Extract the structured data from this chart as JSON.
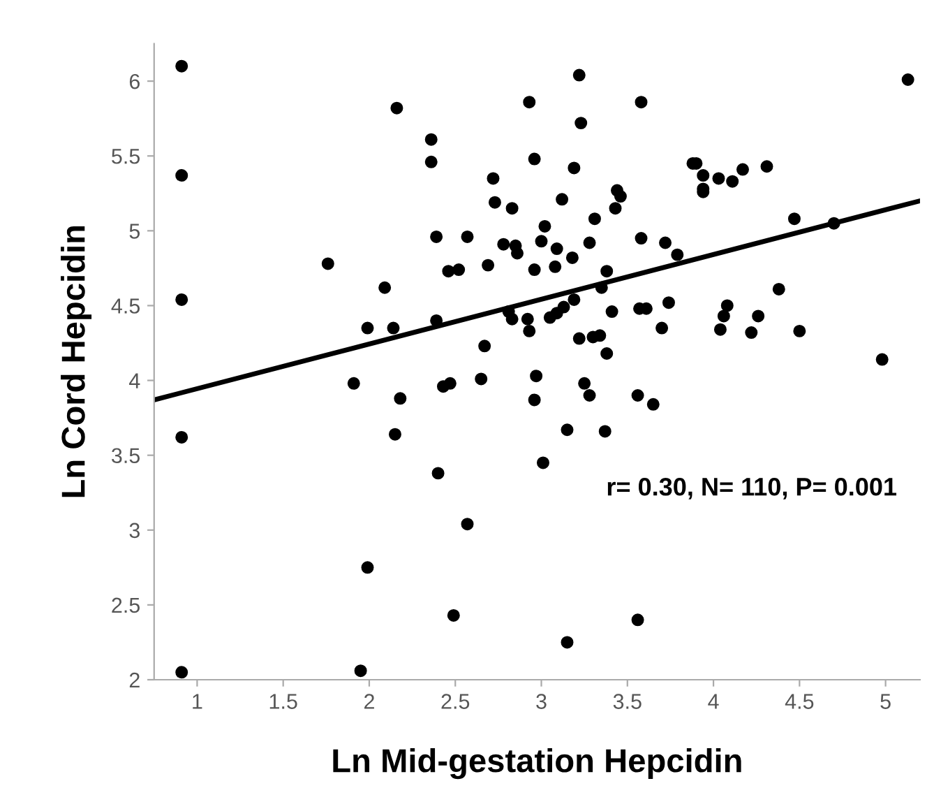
{
  "chart_data": {
    "type": "scatter",
    "xlabel": "Ln Mid-gestation Hepcidin",
    "ylabel": "Ln Cord Hepcidin",
    "annotations": [
      "r= 0.30, N= 110, P= 0.001"
    ],
    "xlim": [
      0.75,
      5.2
    ],
    "ylim": [
      2,
      6.25
    ],
    "xticks": [
      1,
      1.5,
      2,
      2.5,
      3,
      3.5,
      4,
      4.5,
      5
    ],
    "yticks": [
      2,
      2.5,
      3,
      3.5,
      4,
      4.5,
      5,
      5.5,
      6
    ],
    "grid": false,
    "legend": false,
    "series": [
      {
        "marker": "circle",
        "color": "#000000",
        "x": [
          0.91,
          0.91,
          0.91,
          0.91,
          0.91,
          1.76,
          1.99,
          1.91,
          1.99,
          1.95,
          2.18,
          2.15,
          2.4,
          2.57,
          2.49,
          2.96,
          3.28,
          3.15,
          3.37,
          3.01,
          3.56,
          3.15,
          3.56,
          3.65,
          2.16,
          2.36,
          2.36,
          2.93,
          3.22,
          3.23,
          3.58,
          2.96,
          3.19,
          2.72,
          2.73,
          2.83,
          3.12,
          3.44,
          3.46,
          3.43,
          3.31,
          3.02,
          2.39,
          2.57,
          2.78,
          2.85,
          2.86,
          3.0,
          3.09,
          3.28,
          3.58,
          3.18,
          2.46,
          2.52,
          2.69,
          2.96,
          3.08,
          3.38,
          2.09,
          3.35,
          3.19,
          2.14,
          2.39,
          2.81,
          2.83,
          2.92,
          3.05,
          3.09,
          3.13,
          3.41,
          3.57,
          3.61,
          2.93,
          2.67,
          3.22,
          3.3,
          3.34,
          3.38,
          2.43,
          2.47,
          2.65,
          2.97,
          3.25,
          5.13,
          3.88,
          3.9,
          3.94,
          4.03,
          3.94,
          3.94,
          4.11,
          4.17,
          4.31,
          4.47,
          4.7,
          3.72,
          3.79,
          4.38,
          3.74,
          4.08,
          4.06,
          4.26,
          3.7,
          4.04,
          4.22,
          4.5,
          4.98
        ],
        "values": [
          6.1,
          5.37,
          4.54,
          3.62,
          2.05,
          4.78,
          4.35,
          3.98,
          2.75,
          2.06,
          3.88,
          3.64,
          3.38,
          3.04,
          2.43,
          3.87,
          3.9,
          3.67,
          3.66,
          3.45,
          3.9,
          2.25,
          2.4,
          3.84,
          5.82,
          5.61,
          5.46,
          5.86,
          6.04,
          5.72,
          5.86,
          5.48,
          5.42,
          5.35,
          5.19,
          5.15,
          5.21,
          5.27,
          5.23,
          5.15,
          5.08,
          5.03,
          4.96,
          4.96,
          4.91,
          4.9,
          4.85,
          4.93,
          4.88,
          4.92,
          4.95,
          4.82,
          4.73,
          4.74,
          4.77,
          4.74,
          4.76,
          4.73,
          4.62,
          4.62,
          4.54,
          4.35,
          4.4,
          4.46,
          4.41,
          4.41,
          4.42,
          4.45,
          4.49,
          4.46,
          4.48,
          4.48,
          4.33,
          4.23,
          4.28,
          4.29,
          4.3,
          4.18,
          3.96,
          3.98,
          4.01,
          4.03,
          3.98,
          6.01,
          5.45,
          5.45,
          5.37,
          5.35,
          5.28,
          5.26,
          5.33,
          5.41,
          5.43,
          5.08,
          5.05,
          4.92,
          4.84,
          4.61,
          4.52,
          4.5,
          4.43,
          4.43,
          4.35,
          4.34,
          4.32,
          4.33,
          4.14
        ]
      },
      {
        "type": "line",
        "marker": "none",
        "color": "#000000",
        "line_style": "solid",
        "x": [
          0.75,
          5.2
        ],
        "values": [
          3.87,
          5.2
        ]
      }
    ]
  }
}
